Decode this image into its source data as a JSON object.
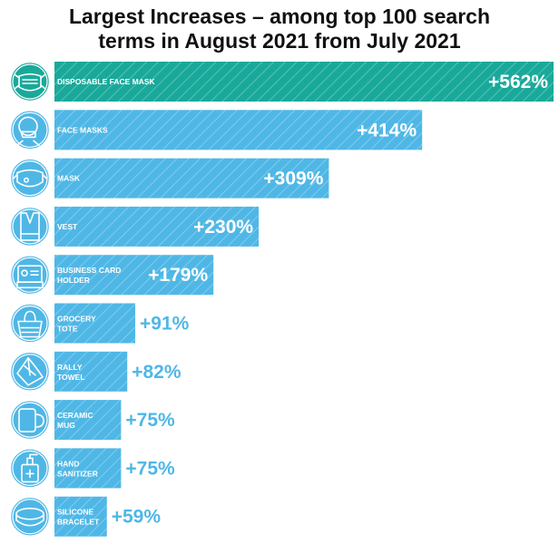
{
  "chart_data": {
    "type": "bar",
    "title_line1": "Largest Increases – among top 100 search",
    "title_line2": "terms in August 2021 from July 2021",
    "categories": [
      [
        "DISPOSABLE FACE MASK"
      ],
      [
        "FACE MASKS"
      ],
      [
        "MASK"
      ],
      [
        "VEST"
      ],
      [
        "BUSINESS CARD",
        "HOLDER"
      ],
      [
        "GROCERY",
        "TOTE"
      ],
      [
        "RALLY",
        "TOWEL"
      ],
      [
        "CERAMIC",
        "MUG"
      ],
      [
        "HAND",
        "SANITIZER"
      ],
      [
        "SILICONE",
        "BRACELET"
      ]
    ],
    "values": [
      562,
      414,
      309,
      230,
      179,
      91,
      82,
      75,
      75,
      59
    ],
    "value_labels": [
      "+562%",
      "+414%",
      "+309%",
      "+230%",
      "+179%",
      "+91%",
      "+82%",
      "+75%",
      "+75%",
      "+59%"
    ],
    "icons": [
      "face-mask-icon",
      "person-with-mask-icon",
      "cloth-mask-icon",
      "vest-icon",
      "business-card-holder-icon",
      "grocery-tote-icon",
      "rally-towel-icon",
      "ceramic-mug-icon",
      "hand-sanitizer-icon",
      "silicone-bracelet-icon"
    ],
    "colors": {
      "highlight": "#19a99a",
      "bar": "#4fb7e6",
      "value_text": "#4fb7e6"
    },
    "xlim": [
      0,
      562
    ],
    "grid": false
  }
}
